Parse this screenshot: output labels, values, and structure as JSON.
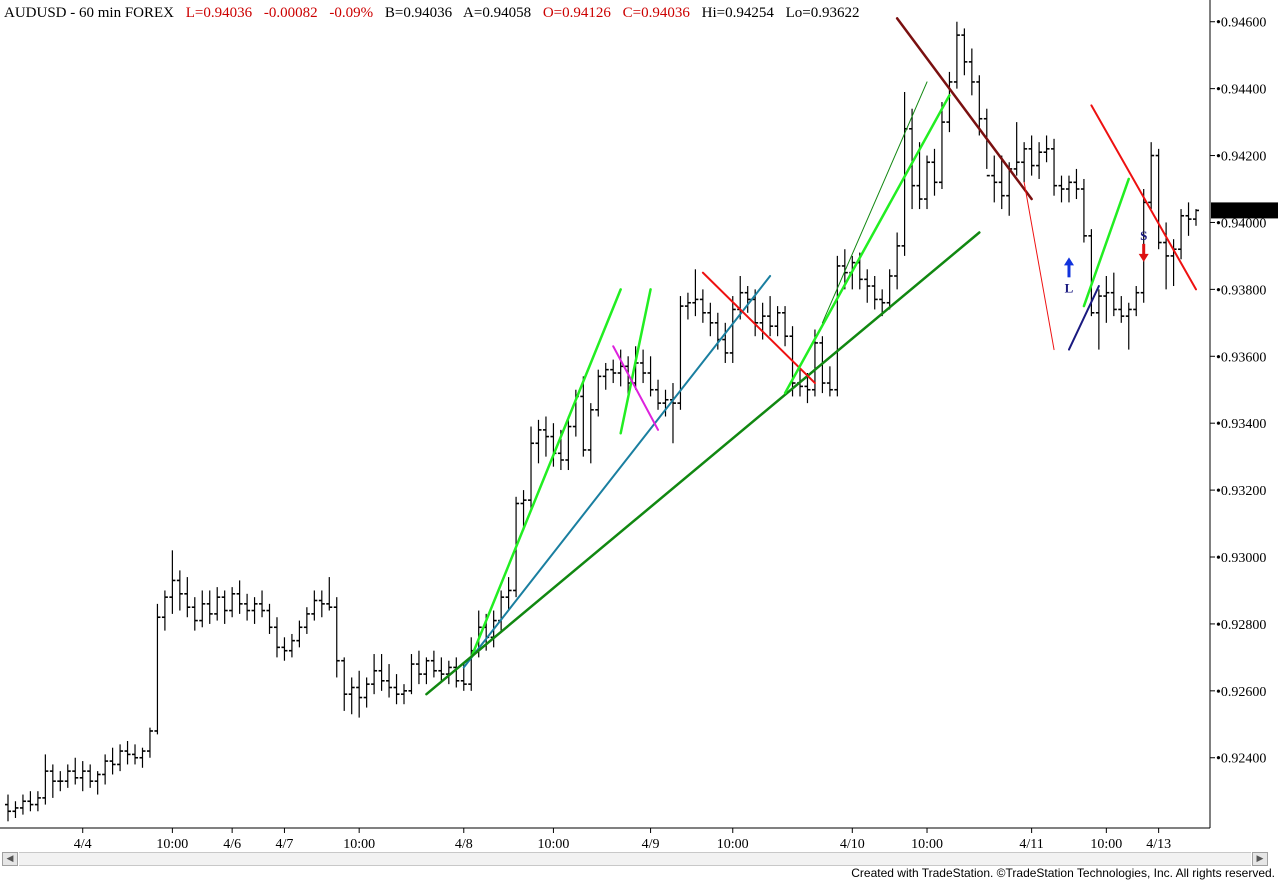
{
  "header": {
    "symbol": "AUDUSD - 60 min  FOREX",
    "last": "L=0.94036",
    "change": "-0.00082",
    "change_pct": "-0.09%",
    "bid": "B=0.94036",
    "ask": "A=0.94058",
    "open": "O=0.94126",
    "close": "C=0.94036",
    "high": "Hi=0.94254",
    "low": "Lo=0.93622"
  },
  "footer_text": "Created with TradeStation. ©TradeStation Technologies, Inc. All rights reserved.",
  "colors": {
    "red_text": "#cc0000",
    "price_badge_bg": "#000000",
    "bright_green": "#22ee22",
    "dark_green": "#118811",
    "teal": "#1a7fa0",
    "red": "#ee1111",
    "dark_red": "#7a1010",
    "magenta": "#dd22dd",
    "navy": "#1a1a80",
    "arrow_blue": "#1133dd",
    "arrow_red": "#dd1111"
  },
  "chart_data": {
    "type": "ohlc",
    "symbol": "AUDUSD",
    "interval": "60 min",
    "y_ticks": [
      "0.94600",
      "0.94400",
      "0.94200",
      "0.94000",
      "0.93800",
      "0.93600",
      "0.93400",
      "0.93200",
      "0.93000",
      "0.92800",
      "0.92600",
      "0.92400"
    ],
    "ylim": [
      0.9219,
      0.9465
    ],
    "current_price_label": "0.94036",
    "current_price": 0.94036,
    "x_tick_labels": [
      "4/4",
      "10:00",
      "4/6",
      "4/7",
      "10:00",
      "4/8",
      "10:00",
      "4/9",
      "10:00",
      "4/10",
      "10:00",
      "4/11",
      "10:00",
      "4/13"
    ],
    "x_tick_bars": [
      10,
      22,
      30,
      37,
      47,
      61,
      73,
      86,
      97,
      113,
      123,
      137,
      147,
      154
    ],
    "bar_count": 160,
    "ohlc": [
      [
        0.9226,
        0.9229,
        0.9221,
        0.9224
      ],
      [
        0.9224,
        0.9227,
        0.9222,
        0.9225
      ],
      [
        0.9225,
        0.9229,
        0.9223,
        0.9227
      ],
      [
        0.9227,
        0.923,
        0.9224,
        0.9226
      ],
      [
        0.9226,
        0.923,
        0.9224,
        0.9228
      ],
      [
        0.9228,
        0.9241,
        0.9226,
        0.9236
      ],
      [
        0.9236,
        0.9238,
        0.9228,
        0.9233
      ],
      [
        0.9233,
        0.9236,
        0.923,
        0.9233
      ],
      [
        0.9233,
        0.9238,
        0.9231,
        0.9236
      ],
      [
        0.9236,
        0.924,
        0.9232,
        0.9234
      ],
      [
        0.9234,
        0.9239,
        0.923,
        0.9236
      ],
      [
        0.9236,
        0.9238,
        0.9231,
        0.9233
      ],
      [
        0.9233,
        0.9236,
        0.9229,
        0.9235
      ],
      [
        0.9235,
        0.9241,
        0.9232,
        0.9239
      ],
      [
        0.9239,
        0.9243,
        0.9235,
        0.9238
      ],
      [
        0.9238,
        0.9244,
        0.9236,
        0.9242
      ],
      [
        0.9242,
        0.9245,
        0.9238,
        0.9241
      ],
      [
        0.9241,
        0.9244,
        0.9238,
        0.924
      ],
      [
        0.924,
        0.9243,
        0.9237,
        0.9242
      ],
      [
        0.9242,
        0.9249,
        0.924,
        0.9248
      ],
      [
        0.9248,
        0.9286,
        0.9247,
        0.9282
      ],
      [
        0.9282,
        0.929,
        0.9278,
        0.9288
      ],
      [
        0.9288,
        0.9302,
        0.9283,
        0.9293
      ],
      [
        0.9293,
        0.9296,
        0.9284,
        0.9289
      ],
      [
        0.9289,
        0.9294,
        0.9282,
        0.9285
      ],
      [
        0.9285,
        0.9288,
        0.9278,
        0.9281
      ],
      [
        0.9281,
        0.929,
        0.9279,
        0.9286
      ],
      [
        0.9286,
        0.929,
        0.928,
        0.9283
      ],
      [
        0.9283,
        0.9291,
        0.9281,
        0.9288
      ],
      [
        0.9288,
        0.929,
        0.928,
        0.9284
      ],
      [
        0.9284,
        0.9291,
        0.9282,
        0.9289
      ],
      [
        0.9289,
        0.9293,
        0.9283,
        0.9286
      ],
      [
        0.9286,
        0.9289,
        0.9281,
        0.9284
      ],
      [
        0.9284,
        0.9288,
        0.928,
        0.9286
      ],
      [
        0.9286,
        0.929,
        0.9282,
        0.9284
      ],
      [
        0.9284,
        0.9286,
        0.9277,
        0.9279
      ],
      [
        0.9279,
        0.9282,
        0.927,
        0.9273
      ],
      [
        0.9273,
        0.9276,
        0.9269,
        0.9272
      ],
      [
        0.9272,
        0.9277,
        0.927,
        0.9275
      ],
      [
        0.9275,
        0.9281,
        0.9273,
        0.9279
      ],
      [
        0.9279,
        0.9285,
        0.9277,
        0.9283
      ],
      [
        0.9283,
        0.929,
        0.9281,
        0.9287
      ],
      [
        0.9287,
        0.929,
        0.9282,
        0.9286
      ],
      [
        0.9286,
        0.9294,
        0.9284,
        0.9285
      ],
      [
        0.9285,
        0.9288,
        0.9264,
        0.9269
      ],
      [
        0.9269,
        0.927,
        0.9254,
        0.9259
      ],
      [
        0.9259,
        0.9264,
        0.9253,
        0.9261
      ],
      [
        0.9261,
        0.9266,
        0.9252,
        0.9258
      ],
      [
        0.9258,
        0.9264,
        0.9255,
        0.9262
      ],
      [
        0.9262,
        0.9271,
        0.9259,
        0.9266
      ],
      [
        0.9266,
        0.9271,
        0.926,
        0.9263
      ],
      [
        0.9263,
        0.9268,
        0.9258,
        0.9261
      ],
      [
        0.9261,
        0.9265,
        0.9256,
        0.9259
      ],
      [
        0.9259,
        0.9262,
        0.9256,
        0.926
      ],
      [
        0.926,
        0.9271,
        0.9259,
        0.9268
      ],
      [
        0.9268,
        0.9272,
        0.9262,
        0.9265
      ],
      [
        0.9265,
        0.927,
        0.9262,
        0.9269
      ],
      [
        0.9269,
        0.9272,
        0.9264,
        0.9266
      ],
      [
        0.9266,
        0.927,
        0.9263,
        0.9265
      ],
      [
        0.9265,
        0.9269,
        0.9262,
        0.9267
      ],
      [
        0.9267,
        0.927,
        0.9261,
        0.9263
      ],
      [
        0.9263,
        0.9268,
        0.926,
        0.9262
      ],
      [
        0.9262,
        0.9276,
        0.926,
        0.9272
      ],
      [
        0.9272,
        0.9284,
        0.927,
        0.9279
      ],
      [
        0.9279,
        0.9283,
        0.9272,
        0.9276
      ],
      [
        0.9276,
        0.9284,
        0.9273,
        0.9281
      ],
      [
        0.9281,
        0.929,
        0.9278,
        0.9288
      ],
      [
        0.9288,
        0.9294,
        0.9284,
        0.929
      ],
      [
        0.929,
        0.9318,
        0.9288,
        0.9316
      ],
      [
        0.9316,
        0.932,
        0.9308,
        0.9317
      ],
      [
        0.9317,
        0.9339,
        0.9314,
        0.9334
      ],
      [
        0.9334,
        0.9341,
        0.9328,
        0.9338
      ],
      [
        0.9338,
        0.9342,
        0.933,
        0.9336
      ],
      [
        0.9336,
        0.934,
        0.9327,
        0.9331
      ],
      [
        0.9331,
        0.9338,
        0.9326,
        0.9329
      ],
      [
        0.9329,
        0.9342,
        0.9326,
        0.9339
      ],
      [
        0.9339,
        0.935,
        0.9336,
        0.9348
      ],
      [
        0.9348,
        0.9354,
        0.933,
        0.9332
      ],
      [
        0.9332,
        0.9346,
        0.9328,
        0.9344
      ],
      [
        0.9344,
        0.9356,
        0.9342,
        0.9354
      ],
      [
        0.9354,
        0.9358,
        0.935,
        0.9356
      ],
      [
        0.9356,
        0.9359,
        0.9352,
        0.9355
      ],
      [
        0.9355,
        0.9362,
        0.9351,
        0.9357
      ],
      [
        0.9357,
        0.936,
        0.9348,
        0.9352
      ],
      [
        0.9352,
        0.9363,
        0.935,
        0.9358
      ],
      [
        0.9358,
        0.9362,
        0.9352,
        0.9355
      ],
      [
        0.9355,
        0.936,
        0.9348,
        0.935
      ],
      [
        0.935,
        0.9353,
        0.9344,
        0.9346
      ],
      [
        0.9346,
        0.935,
        0.9342,
        0.9347
      ],
      [
        0.9347,
        0.9352,
        0.9334,
        0.9346
      ],
      [
        0.9346,
        0.9378,
        0.9344,
        0.9375
      ],
      [
        0.9375,
        0.9379,
        0.9371,
        0.9376
      ],
      [
        0.9376,
        0.9386,
        0.9372,
        0.9377
      ],
      [
        0.9377,
        0.938,
        0.937,
        0.9373
      ],
      [
        0.9373,
        0.9376,
        0.9366,
        0.937
      ],
      [
        0.937,
        0.9373,
        0.9362,
        0.9365
      ],
      [
        0.9365,
        0.937,
        0.9358,
        0.9361
      ],
      [
        0.9361,
        0.9378,
        0.9358,
        0.9374
      ],
      [
        0.9374,
        0.9384,
        0.9371,
        0.9379
      ],
      [
        0.9379,
        0.9381,
        0.9373,
        0.9377
      ],
      [
        0.9377,
        0.938,
        0.9366,
        0.937
      ],
      [
        0.937,
        0.9376,
        0.9365,
        0.9372
      ],
      [
        0.9372,
        0.9378,
        0.9366,
        0.9369
      ],
      [
        0.9369,
        0.9375,
        0.9366,
        0.9373
      ],
      [
        0.9373,
        0.9375,
        0.9363,
        0.9366
      ],
      [
        0.9366,
        0.9369,
        0.9348,
        0.9352
      ],
      [
        0.9352,
        0.9356,
        0.9348,
        0.9351
      ],
      [
        0.9351,
        0.9355,
        0.9346,
        0.935
      ],
      [
        0.935,
        0.9368,
        0.9348,
        0.9364
      ],
      [
        0.9364,
        0.9366,
        0.9349,
        0.9352
      ],
      [
        0.9352,
        0.9357,
        0.9348,
        0.935
      ],
      [
        0.935,
        0.939,
        0.9348,
        0.9387
      ],
      [
        0.9387,
        0.9392,
        0.938,
        0.9385
      ],
      [
        0.9385,
        0.939,
        0.938,
        0.9388
      ],
      [
        0.9388,
        0.9391,
        0.938,
        0.9383
      ],
      [
        0.9383,
        0.9386,
        0.9376,
        0.9381
      ],
      [
        0.9381,
        0.9384,
        0.9374,
        0.9377
      ],
      [
        0.9377,
        0.938,
        0.9372,
        0.9376
      ],
      [
        0.9376,
        0.9386,
        0.9374,
        0.9384
      ],
      [
        0.9384,
        0.9397,
        0.938,
        0.9393
      ],
      [
        0.9393,
        0.9439,
        0.939,
        0.9428
      ],
      [
        0.9428,
        0.9434,
        0.9404,
        0.9411
      ],
      [
        0.9411,
        0.9424,
        0.9404,
        0.9407
      ],
      [
        0.9407,
        0.942,
        0.9404,
        0.9418
      ],
      [
        0.9418,
        0.9422,
        0.9408,
        0.9412
      ],
      [
        0.9412,
        0.9436,
        0.941,
        0.943
      ],
      [
        0.943,
        0.9445,
        0.9427,
        0.9442
      ],
      [
        0.9442,
        0.946,
        0.944,
        0.9456
      ],
      [
        0.9456,
        0.9458,
        0.9444,
        0.9448
      ],
      [
        0.9448,
        0.9452,
        0.9438,
        0.9442
      ],
      [
        0.9442,
        0.9444,
        0.9426,
        0.9431
      ],
      [
        0.9431,
        0.9434,
        0.9416,
        0.9414
      ],
      [
        0.9414,
        0.942,
        0.9406,
        0.9412
      ],
      [
        0.9412,
        0.942,
        0.9404,
        0.9408
      ],
      [
        0.9408,
        0.9418,
        0.9402,
        0.9416
      ],
      [
        0.9416,
        0.943,
        0.9414,
        0.9418
      ],
      [
        0.9418,
        0.9424,
        0.9412,
        0.9422
      ],
      [
        0.9422,
        0.9426,
        0.9414,
        0.9417
      ],
      [
        0.9417,
        0.9424,
        0.9413,
        0.9421
      ],
      [
        0.9421,
        0.9426,
        0.9418,
        0.9422
      ],
      [
        0.9422,
        0.9425,
        0.9408,
        0.9411
      ],
      [
        0.9411,
        0.9414,
        0.9406,
        0.941
      ],
      [
        0.941,
        0.9414,
        0.9406,
        0.9412
      ],
      [
        0.9412,
        0.9416,
        0.9407,
        0.941
      ],
      [
        0.941,
        0.9413,
        0.9394,
        0.9396
      ],
      [
        0.9396,
        0.9398,
        0.9372,
        0.9373
      ],
      [
        0.9373,
        0.938,
        0.9362,
        0.9378
      ],
      [
        0.9378,
        0.9384,
        0.937,
        0.9379
      ],
      [
        0.9379,
        0.9385,
        0.9372,
        0.9374
      ],
      [
        0.9374,
        0.9378,
        0.937,
        0.9372
      ],
      [
        0.9372,
        0.9376,
        0.9362,
        0.9374
      ],
      [
        0.9374,
        0.9381,
        0.9372,
        0.9379
      ],
      [
        0.9379,
        0.941,
        0.9376,
        0.9406
      ],
      [
        0.9406,
        0.9424,
        0.9404,
        0.942
      ],
      [
        0.942,
        0.9422,
        0.9392,
        0.9394
      ],
      [
        0.9394,
        0.94,
        0.938,
        0.939
      ],
      [
        0.939,
        0.9395,
        0.9381,
        0.9392
      ],
      [
        0.9392,
        0.9404,
        0.9389,
        0.9402
      ],
      [
        0.9402,
        0.9406,
        0.9396,
        0.9401
      ],
      [
        0.9401,
        0.9404,
        0.9399,
        0.94036
      ]
    ],
    "trendlines": [
      {
        "color": "bright_green",
        "from": [
          62,
          0.927
        ],
        "to": [
          82,
          0.938
        ],
        "width": 2.5
      },
      {
        "color": "bright_green",
        "from": [
          82,
          0.9337
        ],
        "to": [
          86,
          0.938
        ],
        "width": 2.5
      },
      {
        "color": "teal",
        "from": [
          61,
          0.9267
        ],
        "to": [
          102,
          0.9384
        ],
        "width": 2
      },
      {
        "color": "dark_green",
        "from": [
          56,
          0.9259
        ],
        "to": [
          130,
          0.9397
        ],
        "width": 2.5
      },
      {
        "color": "magenta",
        "from": [
          81,
          0.9363
        ],
        "to": [
          87,
          0.9338
        ],
        "width": 2
      },
      {
        "color": "red",
        "from": [
          93,
          0.9385
        ],
        "to": [
          108,
          0.9352
        ],
        "width": 2
      },
      {
        "color": "bright_green",
        "from": [
          104,
          0.9349
        ],
        "to": [
          126,
          0.9438
        ],
        "width": 2.5
      },
      {
        "color": "dark_green",
        "from": [
          109,
          0.937
        ],
        "to": [
          123,
          0.9442
        ],
        "width": 1
      },
      {
        "color": "dark_red",
        "from": [
          119,
          0.9461
        ],
        "to": [
          137,
          0.9407
        ],
        "width": 2.5
      },
      {
        "color": "red",
        "from": [
          136,
          0.9412
        ],
        "to": [
          140,
          0.9362
        ],
        "width": 1
      },
      {
        "color": "navy",
        "from": [
          142,
          0.9362
        ],
        "to": [
          146,
          0.9381
        ],
        "width": 2
      },
      {
        "color": "bright_green",
        "from": [
          144,
          0.9375
        ],
        "to": [
          150,
          0.9413
        ],
        "width": 2.5
      },
      {
        "color": "red",
        "from": [
          145,
          0.9435
        ],
        "to": [
          159,
          0.938
        ],
        "width": 2
      }
    ],
    "signals": [
      {
        "type": "long",
        "label": "L",
        "bar": 142,
        "price": 0.9383
      },
      {
        "type": "short",
        "label": "S",
        "bar": 152,
        "price": 0.9393
      }
    ]
  }
}
